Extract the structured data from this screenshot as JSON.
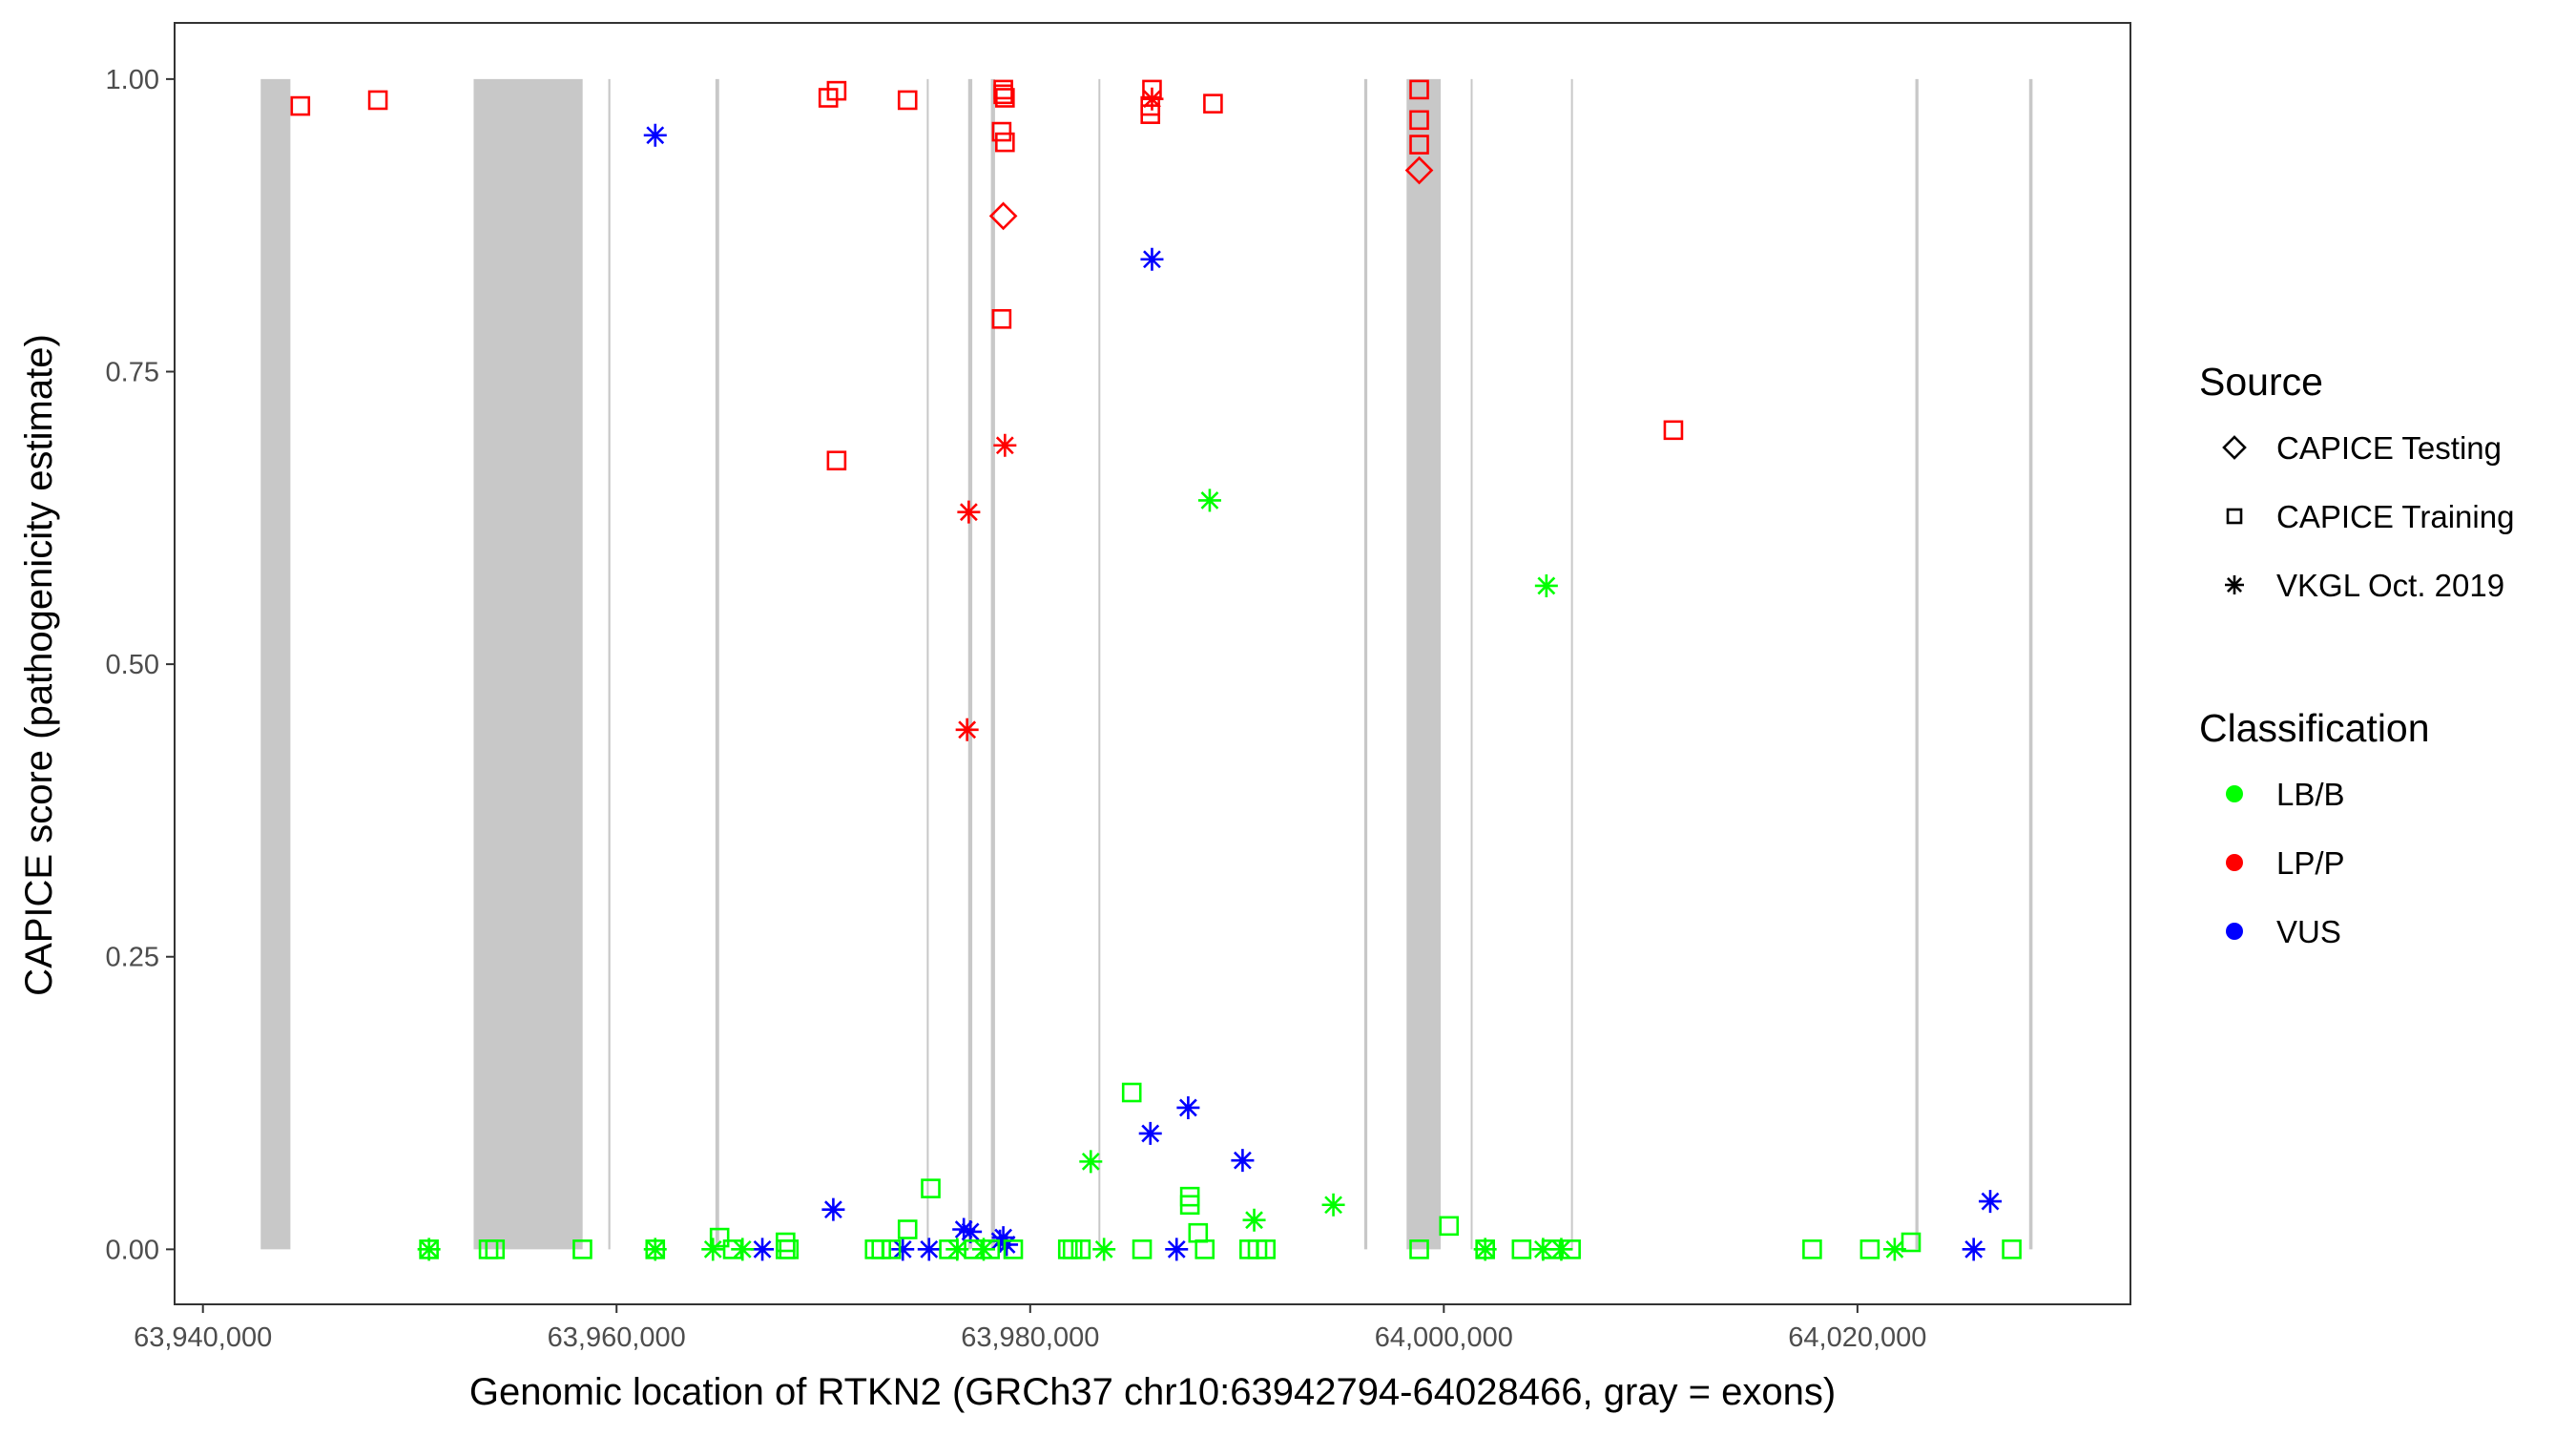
{
  "chart_data": {
    "type": "scatter",
    "title": "",
    "xlabel": "Genomic location of RTKN2 (GRCh37 chr10:63942794-64028466, gray = exons)",
    "ylabel": "CAPICE score (pathogenicity estimate)",
    "xlim": [
      63938630,
      64033200
    ],
    "ylim": [
      -0.047,
      1.048
    ],
    "x_ticks": [
      63940000,
      63960000,
      63980000,
      64000000,
      64020000
    ],
    "x_tick_labels": [
      "63,940,000",
      "63,960,000",
      "63,980,000",
      "64,000,000",
      "64,020,000"
    ],
    "y_ticks": [
      0,
      0.25,
      0.5,
      0.75,
      1.0
    ],
    "y_tick_labels": [
      "0.00",
      "0.25",
      "0.50",
      "0.75",
      "1.00"
    ],
    "grid": false,
    "legend_position": "right",
    "legend": {
      "source_title": "Source",
      "sources": [
        {
          "key": "test",
          "label": "CAPICE Testing",
          "shape": "diamond"
        },
        {
          "key": "train",
          "label": "CAPICE Training",
          "shape": "square"
        },
        {
          "key": "vkgl",
          "label": "VKGL Oct. 2019",
          "shape": "asterisk"
        }
      ],
      "class_title": "Classification",
      "classes": [
        {
          "key": "LB/B",
          "label": "LB/B",
          "color": "#00FF00"
        },
        {
          "key": "LP/P",
          "label": "LP/P",
          "color": "#FF0000"
        },
        {
          "key": "VUS",
          "label": "VUS",
          "color": "#0000FF"
        }
      ]
    },
    "exon_color": "#C8C8C8",
    "exons": [
      [
        63942794,
        63944230
      ],
      [
        63953090,
        63958360
      ],
      [
        63959600,
        63959700
      ],
      [
        63964780,
        63964960
      ],
      [
        63975000,
        63975080
      ],
      [
        63977000,
        63977200
      ],
      [
        63978100,
        63978300
      ],
      [
        63983300,
        63983380
      ],
      [
        63996150,
        63996300
      ],
      [
        63998200,
        63999850
      ],
      [
        64001300,
        64001380
      ],
      [
        64006150,
        64006230
      ],
      [
        64022800,
        64022950
      ],
      [
        64028300,
        64028466
      ]
    ],
    "points": [
      [
        63944710,
        0.977,
        "train",
        "LP/P"
      ],
      [
        63948460,
        0.982,
        "train",
        "LP/P"
      ],
      [
        63970240,
        0.984,
        "train",
        "LP/P"
      ],
      [
        63970640,
        0.99,
        "train",
        "LP/P"
      ],
      [
        63974070,
        0.982,
        "train",
        "LP/P"
      ],
      [
        63978700,
        0.991,
        "train",
        "LP/P"
      ],
      [
        63978700,
        0.987,
        "train",
        "LP/P"
      ],
      [
        63978780,
        0.984,
        "train",
        "LP/P"
      ],
      [
        63978620,
        0.955,
        "train",
        "LP/P"
      ],
      [
        63978780,
        0.946,
        "train",
        "LP/P"
      ],
      [
        63978700,
        0.883,
        "test",
        "LP/P"
      ],
      [
        63978620,
        0.795,
        "train",
        "LP/P"
      ],
      [
        63970640,
        0.674,
        "train",
        "LP/P"
      ],
      [
        63978780,
        0.687,
        "vkgl",
        "LP/P"
      ],
      [
        63977030,
        0.63,
        "vkgl",
        "LP/P"
      ],
      [
        63976950,
        0.444,
        "vkgl",
        "LP/P"
      ],
      [
        63985890,
        0.991,
        "train",
        "LP/P"
      ],
      [
        63985810,
        0.977,
        "train",
        "LP/P"
      ],
      [
        63985810,
        0.97,
        "train",
        "LP/P"
      ],
      [
        63985890,
        0.983,
        "vkgl",
        "LP/P"
      ],
      [
        63988840,
        0.979,
        "train",
        "LP/P"
      ],
      [
        63998810,
        0.991,
        "train",
        "LP/P"
      ],
      [
        63998810,
        0.965,
        "train",
        "LP/P"
      ],
      [
        63998810,
        0.944,
        "train",
        "LP/P"
      ],
      [
        63998810,
        0.922,
        "test",
        "LP/P"
      ],
      [
        64011100,
        0.7,
        "train",
        "LP/P"
      ],
      [
        63961870,
        0.952,
        "vkgl",
        "VUS"
      ],
      [
        63985890,
        0.846,
        "vkgl",
        "VUS"
      ],
      [
        63987640,
        0.121,
        "vkgl",
        "VUS"
      ],
      [
        63985810,
        0.099,
        "vkgl",
        "VUS"
      ],
      [
        63990270,
        0.076,
        "vkgl",
        "VUS"
      ],
      [
        63970480,
        0.034,
        "vkgl",
        "VUS"
      ],
      [
        64026420,
        0.041,
        "vkgl",
        "VUS"
      ],
      [
        63976790,
        0.017,
        "vkgl",
        "VUS"
      ],
      [
        63977110,
        0.015,
        "vkgl",
        "VUS"
      ],
      [
        63978700,
        0.01,
        "vkgl",
        "VUS"
      ],
      [
        63978540,
        0.007,
        "vkgl",
        "VUS"
      ],
      [
        63978860,
        0.004,
        "vkgl",
        "VUS"
      ],
      [
        63967050,
        0.0,
        "vkgl",
        "VUS"
      ],
      [
        63973840,
        0.0,
        "vkgl",
        "VUS"
      ],
      [
        63975110,
        0.0,
        "vkgl",
        "VUS"
      ],
      [
        63987080,
        0.0,
        "vkgl",
        "VUS"
      ],
      [
        64025620,
        0.0,
        "vkgl",
        "VUS"
      ],
      [
        63988680,
        0.64,
        "vkgl",
        "LB/B"
      ],
      [
        64004960,
        0.567,
        "vkgl",
        "LB/B"
      ],
      [
        63984910,
        0.134,
        "train",
        "LB/B"
      ],
      [
        63982930,
        0.075,
        "vkgl",
        "LB/B"
      ],
      [
        63994660,
        0.038,
        "vkgl",
        "LB/B"
      ],
      [
        63990830,
        0.025,
        "vkgl",
        "LB/B"
      ],
      [
        63975190,
        0.052,
        "train",
        "LB/B"
      ],
      [
        63987720,
        0.045,
        "train",
        "LB/B"
      ],
      [
        63987720,
        0.038,
        "train",
        "LB/B"
      ],
      [
        63988120,
        0.014,
        "train",
        "LB/B"
      ],
      [
        64000250,
        0.02,
        "train",
        "LB/B"
      ],
      [
        63974070,
        0.017,
        "train",
        "LB/B"
      ],
      [
        63964980,
        0.01,
        "train",
        "LB/B"
      ],
      [
        63968170,
        0.006,
        "train",
        "LB/B"
      ],
      [
        64022590,
        0.006,
        "train",
        "LB/B"
      ],
      [
        63950930,
        0.0,
        "vkgl",
        "LB/B"
      ],
      [
        63950930,
        0.0,
        "train",
        "LB/B"
      ],
      [
        63953810,
        0.0,
        "train",
        "LB/B"
      ],
      [
        63954120,
        0.0,
        "train",
        "LB/B"
      ],
      [
        63958350,
        0.0,
        "train",
        "LB/B"
      ],
      [
        63961870,
        0.0,
        "vkgl",
        "LB/B"
      ],
      [
        63961870,
        0.0,
        "train",
        "LB/B"
      ],
      [
        63964660,
        0.0,
        "vkgl",
        "LB/B"
      ],
      [
        63965620,
        0.0,
        "train",
        "LB/B"
      ],
      [
        63966090,
        0.0,
        "vkgl",
        "LB/B"
      ],
      [
        63968170,
        0.0,
        "train",
        "LB/B"
      ],
      [
        63968330,
        0.0,
        "train",
        "LB/B"
      ],
      [
        63972480,
        0.0,
        "train",
        "LB/B"
      ],
      [
        63972800,
        0.0,
        "train",
        "LB/B"
      ],
      [
        63973280,
        0.0,
        "train",
        "LB/B"
      ],
      [
        63976070,
        0.0,
        "train",
        "LB/B"
      ],
      [
        63976470,
        0.0,
        "vkgl",
        "LB/B"
      ],
      [
        63977270,
        0.0,
        "train",
        "LB/B"
      ],
      [
        63977750,
        0.0,
        "vkgl",
        "LB/B"
      ],
      [
        63978060,
        0.0,
        "train",
        "LB/B"
      ],
      [
        63979180,
        0.0,
        "train",
        "LB/B"
      ],
      [
        63981820,
        0.0,
        "train",
        "LB/B"
      ],
      [
        63982050,
        0.0,
        "train",
        "LB/B"
      ],
      [
        63982450,
        0.0,
        "train",
        "LB/B"
      ],
      [
        63983570,
        0.0,
        "vkgl",
        "LB/B"
      ],
      [
        63985410,
        0.0,
        "train",
        "LB/B"
      ],
      [
        63988440,
        0.0,
        "train",
        "LB/B"
      ],
      [
        63990590,
        0.0,
        "train",
        "LB/B"
      ],
      [
        63990990,
        0.0,
        "train",
        "LB/B"
      ],
      [
        63991390,
        0.0,
        "train",
        "LB/B"
      ],
      [
        63998810,
        0.0,
        "train",
        "LB/B"
      ],
      [
        64002000,
        0.0,
        "vkgl",
        "LB/B"
      ],
      [
        64002000,
        0.0,
        "train",
        "LB/B"
      ],
      [
        64003760,
        0.0,
        "train",
        "LB/B"
      ],
      [
        64004800,
        0.0,
        "vkgl",
        "LB/B"
      ],
      [
        64005200,
        0.0,
        "train",
        "LB/B"
      ],
      [
        64005680,
        0.0,
        "vkgl",
        "LB/B"
      ],
      [
        64006150,
        0.0,
        "train",
        "LB/B"
      ],
      [
        64017810,
        0.0,
        "train",
        "LB/B"
      ],
      [
        64020600,
        0.0,
        "train",
        "LB/B"
      ],
      [
        64021800,
        0.0,
        "vkgl",
        "LB/B"
      ],
      [
        64027460,
        0.0,
        "train",
        "LB/B"
      ]
    ]
  }
}
